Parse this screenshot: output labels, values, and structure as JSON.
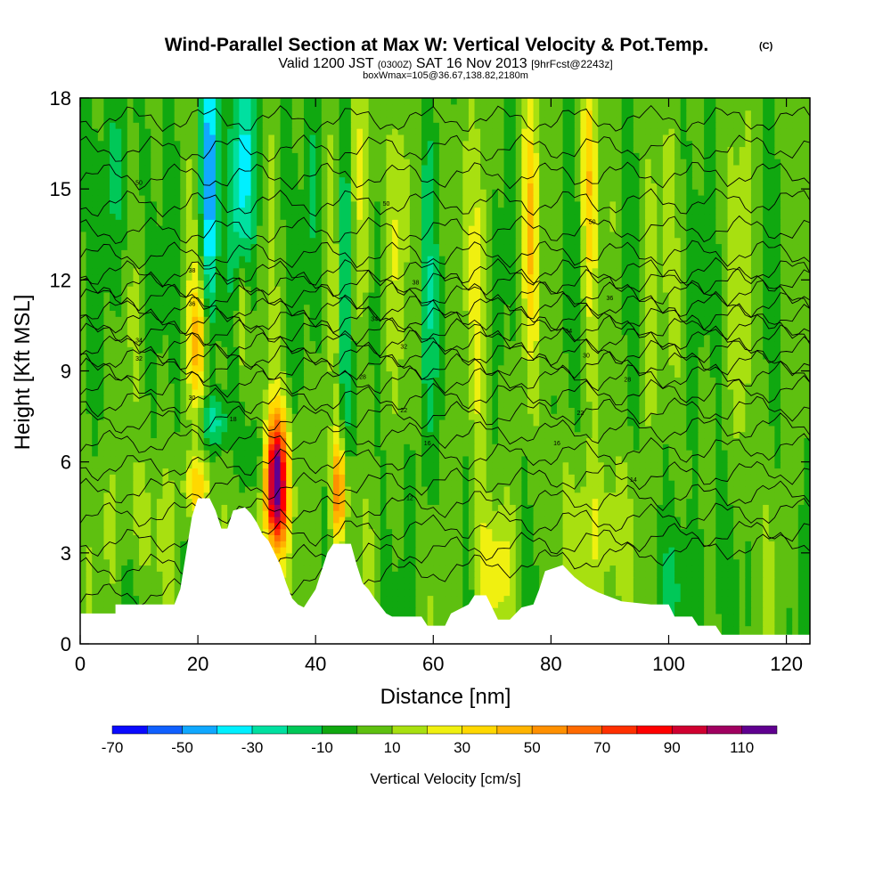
{
  "chart_data": {
    "type": "heatmap",
    "title": "Wind-Parallel Section at Max W: Vertical Velocity & Pot.Temp.",
    "title_mark": "(C)",
    "subtitle": {
      "main": "Valid 1200 JST",
      "utc": "(0300Z)",
      "date": "SAT 16 Nov 2013",
      "forecast": "[9hrFcst@2243z]"
    },
    "box_info": "boxWmax=105@36.67,138.82,2180m",
    "xlabel": "Distance [nm]",
    "ylabel": "Height [Kft MSL]",
    "xlim": [
      0,
      124
    ],
    "ylim": [
      0,
      18
    ],
    "x_ticks": [
      0,
      20,
      40,
      60,
      80,
      100,
      120
    ],
    "y_ticks": [
      0,
      3,
      6,
      9,
      12,
      15,
      18
    ],
    "x_tick_labels": [
      "0",
      "20",
      "40",
      "60",
      "80",
      "100",
      "120"
    ],
    "y_tick_labels": [
      "0",
      "3",
      "6",
      "9",
      "12",
      "15",
      "18"
    ],
    "colorbar": {
      "label": "Vertical Velocity [cm/s]",
      "levels": [
        -70,
        -60,
        -50,
        -40,
        -30,
        -20,
        -10,
        0,
        10,
        20,
        30,
        40,
        50,
        60,
        70,
        80,
        90,
        100,
        110,
        120
      ],
      "tick_values": [
        -70,
        -50,
        -30,
        -10,
        10,
        30,
        50,
        70,
        90,
        110
      ],
      "tick_labels": [
        "-70",
        "-50",
        "-30",
        "-10",
        "10",
        "30",
        "50",
        "70",
        "90",
        "110"
      ],
      "colors": [
        "#0a0aff",
        "#1060ff",
        "#10a8ff",
        "#00f0ff",
        "#00e0a0",
        "#00c858",
        "#10a810",
        "#5ec010",
        "#a8e010",
        "#f0f010",
        "#ffd800",
        "#ffb400",
        "#ff9000",
        "#ff6a00",
        "#ff3000",
        "#ff0000",
        "#d00030",
        "#a00060",
        "#600090"
      ]
    },
    "terrain": [
      [
        0,
        1
      ],
      [
        6,
        1
      ],
      [
        6,
        1.3
      ],
      [
        16,
        1.3
      ],
      [
        17,
        1.8
      ],
      [
        18,
        3
      ],
      [
        19,
        4.2
      ],
      [
        20,
        4.8
      ],
      [
        22,
        4.8
      ],
      [
        23,
        4.4
      ],
      [
        24,
        3.8
      ],
      [
        25,
        3.8
      ],
      [
        26,
        4.4
      ],
      [
        28,
        4.5
      ],
      [
        29,
        4.3
      ],
      [
        30,
        4
      ],
      [
        31,
        3.6
      ],
      [
        32,
        3.4
      ],
      [
        33,
        3
      ],
      [
        34,
        2.6
      ],
      [
        35,
        2
      ],
      [
        36,
        1.5
      ],
      [
        37,
        1.3
      ],
      [
        38,
        1.2
      ],
      [
        39,
        1.5
      ],
      [
        40,
        1.8
      ],
      [
        41,
        2.4
      ],
      [
        42,
        3
      ],
      [
        43,
        3.3
      ],
      [
        46,
        3.3
      ],
      [
        47,
        2.6
      ],
      [
        48,
        2
      ],
      [
        49,
        1.8
      ],
      [
        50,
        1.5
      ],
      [
        52,
        1
      ],
      [
        53,
        0.9
      ],
      [
        55,
        0.9
      ],
      [
        58,
        0.9
      ],
      [
        59,
        0.6
      ],
      [
        62,
        0.6
      ],
      [
        63,
        1
      ],
      [
        66,
        1.3
      ],
      [
        67,
        1.6
      ],
      [
        69,
        1.6
      ],
      [
        70,
        1.2
      ],
      [
        71,
        0.8
      ],
      [
        73,
        0.8
      ],
      [
        75,
        1.2
      ],
      [
        77,
        1.3
      ],
      [
        78,
        1.8
      ],
      [
        79,
        2.4
      ],
      [
        82,
        2.6
      ],
      [
        84,
        2.2
      ],
      [
        86,
        1.9
      ],
      [
        88,
        1.7
      ],
      [
        92,
        1.4
      ],
      [
        97,
        1.3
      ],
      [
        100,
        1.3
      ],
      [
        101,
        0.9
      ],
      [
        104,
        0.9
      ],
      [
        105,
        0.6
      ],
      [
        108,
        0.6
      ],
      [
        109,
        0.3
      ],
      [
        124,
        0.3
      ]
    ],
    "isentropes": [
      {
        "level": 12,
        "y0": 1.5,
        "y1": 3.4,
        "amp": 0.3
      },
      {
        "level": 14,
        "y0": 2.4,
        "y1": 3.8,
        "amp": 0.3
      },
      {
        "level": 16,
        "y0": 3.3,
        "y1": 4.4,
        "amp": 0.3
      },
      {
        "level": 18,
        "y0": 4.2,
        "y1": 5.0,
        "amp": 0.3
      },
      {
        "level": 20,
        "y0": 5.0,
        "y1": 5.7,
        "amp": 0.3
      },
      {
        "level": 22,
        "y0": 5.8,
        "y1": 6.5,
        "amp": 0.3
      },
      {
        "level": 24,
        "y0": 6.6,
        "y1": 7.2,
        "amp": 0.3
      },
      {
        "level": 26,
        "y0": 7.3,
        "y1": 7.8,
        "amp": 0.3
      },
      {
        "level": 28,
        "y0": 7.9,
        "y1": 8.4,
        "amp": 0.3
      },
      {
        "level": 30,
        "y0": 8.5,
        "y1": 8.9,
        "amp": 0.3
      },
      {
        "level": 32,
        "y0": 9.0,
        "y1": 9.3,
        "amp": 0.3
      },
      {
        "level": 34,
        "y0": 9.4,
        "y1": 9.7,
        "amp": 0.3
      },
      {
        "level": 36,
        "y0": 9.8,
        "y1": 10.1,
        "amp": 0.3
      },
      {
        "level": 38,
        "y0": 10.2,
        "y1": 10.5,
        "amp": 0.3
      },
      {
        "level": 40,
        "y0": 10.6,
        "y1": 10.8,
        "amp": 0.3
      },
      {
        "level": 42,
        "y0": 11.0,
        "y1": 11.2,
        "amp": 0.3
      },
      {
        "level": 44,
        "y0": 11.4,
        "y1": 11.6,
        "amp": 0.3
      },
      {
        "level": 46,
        "y0": 11.8,
        "y1": 12.0,
        "amp": 0.3
      },
      {
        "level": 48,
        "y0": 12.2,
        "y1": 12.3,
        "amp": 0.3
      },
      {
        "level": 50,
        "y0": 12.8,
        "y1": 12.9,
        "amp": 0.3
      },
      {
        "level": 52,
        "y0": 13.6,
        "y1": 13.7,
        "amp": 0.3
      },
      {
        "level": 54,
        "y0": 14.5,
        "y1": 14.6,
        "amp": 0.3
      },
      {
        "level": 56,
        "y0": 15.4,
        "y1": 15.5,
        "amp": 0.3
      },
      {
        "level": 58,
        "y0": 16.3,
        "y1": 16.4,
        "amp": 0.3
      },
      {
        "level": 60,
        "y0": 17.3,
        "y1": 17.3,
        "amp": 0.3
      }
    ],
    "contour_labels": [
      {
        "text": "50",
        "x": 10,
        "y": 15.2
      },
      {
        "text": "50",
        "x": 52,
        "y": 14.5
      },
      {
        "text": "50",
        "x": 87,
        "y": 13.9
      },
      {
        "text": "38",
        "x": 19,
        "y": 12.3
      },
      {
        "text": "38",
        "x": 57,
        "y": 11.9
      },
      {
        "text": "36",
        "x": 19,
        "y": 11.2
      },
      {
        "text": "36",
        "x": 90,
        "y": 11.4
      },
      {
        "text": "34",
        "x": 10,
        "y": 10.0
      },
      {
        "text": "34",
        "x": 50,
        "y": 10.7
      },
      {
        "text": "34",
        "x": 83,
        "y": 10.3
      },
      {
        "text": "32",
        "x": 10,
        "y": 9.4
      },
      {
        "text": "32",
        "x": 55,
        "y": 9.8
      },
      {
        "text": "30",
        "x": 86,
        "y": 9.5
      },
      {
        "text": "28",
        "x": 48,
        "y": 8.8
      },
      {
        "text": "28",
        "x": 93,
        "y": 8.7
      },
      {
        "text": "30",
        "x": 19,
        "y": 8.1
      },
      {
        "text": "22",
        "x": 55,
        "y": 7.7
      },
      {
        "text": "22",
        "x": 85,
        "y": 7.6
      },
      {
        "text": "18",
        "x": 26,
        "y": 7.4
      },
      {
        "text": "16",
        "x": 59,
        "y": 6.6
      },
      {
        "text": "16",
        "x": 81,
        "y": 6.6
      },
      {
        "text": "14",
        "x": 94,
        "y": 5.4
      },
      {
        "text": "12",
        "x": 56,
        "y": 4.8
      }
    ],
    "w_features": [
      {
        "x": 33.3,
        "y": 5.3,
        "sx": 1.4,
        "sy": 1.6,
        "w": 120
      },
      {
        "x": 44,
        "y": 5.0,
        "sx": 1.0,
        "sy": 1.3,
        "w": 60
      },
      {
        "x": 20,
        "y": 5.2,
        "sx": 1.6,
        "sy": 0.7,
        "w": 35
      },
      {
        "x": 20,
        "y": 10.0,
        "sx": 1.3,
        "sy": 1.6,
        "w": 35
      },
      {
        "x": 27.5,
        "y": 11.0,
        "sx": 0.8,
        "sy": 1.5,
        "w": 35
      },
      {
        "x": 22,
        "y": 15.5,
        "sx": 1.0,
        "sy": 3.5,
        "w": -58
      },
      {
        "x": 28,
        "y": 15.5,
        "sx": 1.3,
        "sy": 3.5,
        "w": -40
      },
      {
        "x": 45,
        "y": 11.0,
        "sx": 0.7,
        "sy": 5.0,
        "w": -25
      },
      {
        "x": 30,
        "y": 6.2,
        "sx": 1.2,
        "sy": 0.9,
        "w": -18
      },
      {
        "x": 23,
        "y": 7.3,
        "sx": 1.8,
        "sy": 0.6,
        "w": -25
      },
      {
        "x": 48,
        "y": 15.0,
        "sx": 1.2,
        "sy": 3.5,
        "w": 22
      },
      {
        "x": 76.5,
        "y": 14.0,
        "sx": 1.0,
        "sy": 3.0,
        "w": 30
      },
      {
        "x": 86.5,
        "y": 15.5,
        "sx": 0.9,
        "sy": 3.0,
        "w": 32
      },
      {
        "x": 70,
        "y": 2.5,
        "sx": 2.5,
        "sy": 1.4,
        "w": 20
      },
      {
        "x": 88,
        "y": 3.5,
        "sx": 3.5,
        "sy": 1.8,
        "w": 20
      },
      {
        "x": 68,
        "y": 11.0,
        "sx": 1.2,
        "sy": 4.0,
        "w": 18
      },
      {
        "x": 59,
        "y": 10.0,
        "sx": 1.0,
        "sy": 5.0,
        "w": -15
      },
      {
        "x": 7,
        "y": 15.5,
        "sx": 2.0,
        "sy": 2.5,
        "w": -15
      },
      {
        "x": 104,
        "y": 2.0,
        "sx": 3.0,
        "sy": 1.5,
        "w": -14
      },
      {
        "x": 10,
        "y": 4.0,
        "sx": 4.0,
        "sy": 1.5,
        "w": 10
      },
      {
        "x": 113,
        "y": 12.0,
        "sx": 1.0,
        "sy": 4.0,
        "w": 15
      },
      {
        "x": 40,
        "y": 15.0,
        "sx": 1.0,
        "sy": 2.5,
        "w": -12
      },
      {
        "x": 54,
        "y": 14.0,
        "sx": 1.0,
        "sy": 3.0,
        "w": 12
      },
      {
        "x": 97,
        "y": 13.0,
        "sx": 1.0,
        "sy": 4.0,
        "w": 12
      }
    ]
  }
}
